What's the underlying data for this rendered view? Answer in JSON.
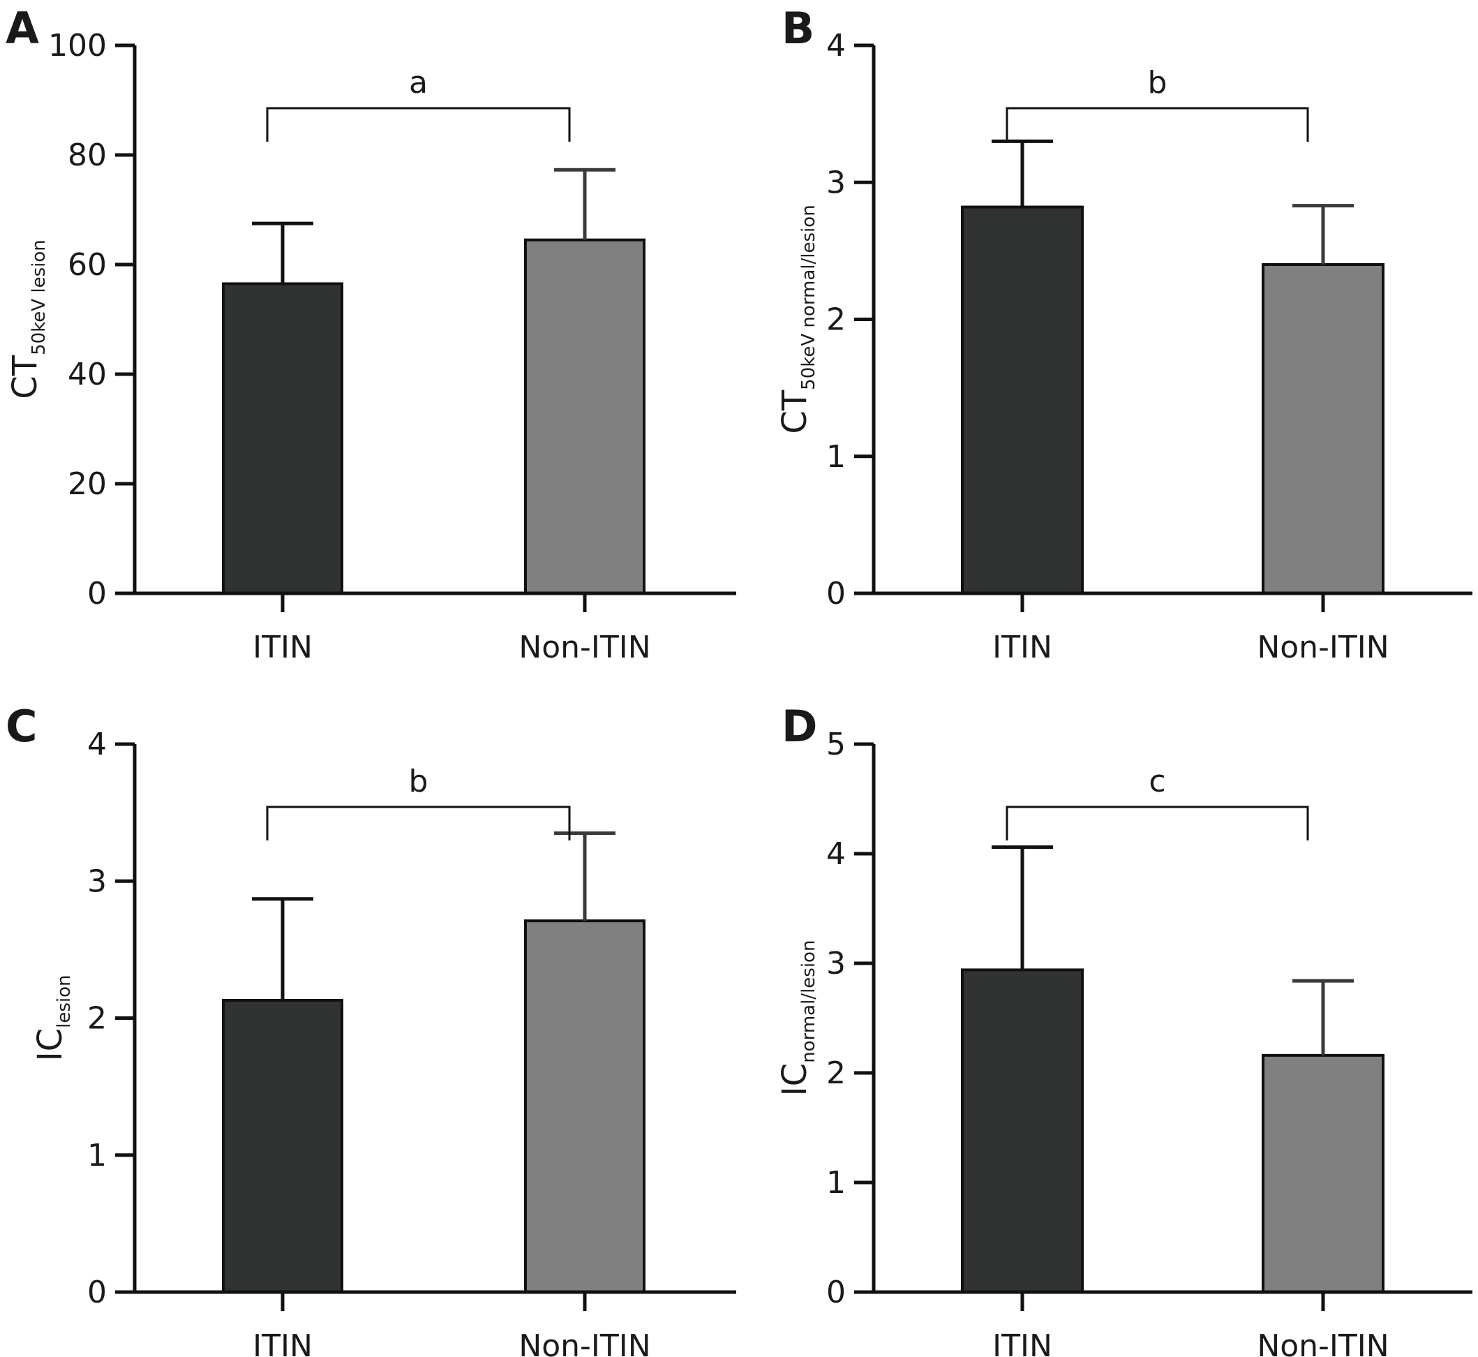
{
  "chart_data": [
    {
      "panel": "A",
      "type": "bar",
      "categories": [
        "ITIN",
        "Non-ITIN"
      ],
      "values": [
        56.5,
        64.5
      ],
      "errors": [
        11,
        12.8
      ],
      "ylabel": {
        "main": "CT",
        "sub": "50keV lesion"
      },
      "ylim": [
        0,
        100
      ],
      "yticks": [
        0,
        20,
        40,
        60,
        80,
        100
      ],
      "significance": "a",
      "colors": [
        "#313332",
        "#808080"
      ]
    },
    {
      "panel": "B",
      "type": "bar",
      "categories": [
        "ITIN",
        "Non-ITIN"
      ],
      "values": [
        2.82,
        2.4
      ],
      "errors": [
        0.48,
        0.43
      ],
      "ylabel": {
        "main": "CT",
        "sub": "50keV normal/lesion"
      },
      "ylim": [
        0,
        4
      ],
      "yticks": [
        0,
        1,
        2,
        3,
        4
      ],
      "significance": "b",
      "colors": [
        "#313332",
        "#808080"
      ]
    },
    {
      "panel": "C",
      "type": "bar",
      "categories": [
        "ITIN",
        "Non-ITIN"
      ],
      "values": [
        2.13,
        2.71
      ],
      "errors": [
        0.74,
        0.64
      ],
      "ylabel": {
        "main": "IC",
        "sub": "lesion"
      },
      "ylim": [
        0,
        4
      ],
      "yticks": [
        0,
        1,
        2,
        3,
        4
      ],
      "significance": "b",
      "colors": [
        "#313332",
        "#808080"
      ]
    },
    {
      "panel": "D",
      "type": "bar",
      "categories": [
        "ITIN",
        "Non-ITIN"
      ],
      "values": [
        2.94,
        2.16
      ],
      "errors": [
        1.12,
        0.68
      ],
      "ylabel": {
        "main": "IC",
        "sub": "normal/lesion"
      },
      "ylim": [
        0,
        5
      ],
      "yticks": [
        0,
        1,
        2,
        3,
        4,
        5
      ],
      "significance": "c",
      "colors": [
        "#313332",
        "#808080"
      ]
    }
  ]
}
